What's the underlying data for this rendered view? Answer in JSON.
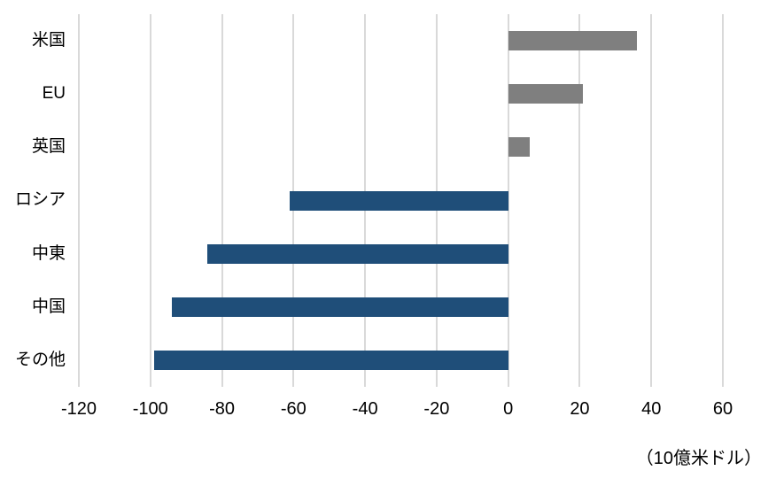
{
  "chart_data": {
    "type": "bar",
    "orientation": "horizontal",
    "title": "",
    "categories": [
      "米国",
      "EU",
      "英国",
      "ロシア",
      "中東",
      "中国",
      "その他"
    ],
    "values": [
      36,
      21,
      6,
      -61,
      -84,
      -94,
      -99
    ],
    "xlabel": "（10億米ドル）",
    "ylabel": "",
    "xlim": [
      -120,
      60
    ],
    "xticks": [
      -120,
      -100,
      -80,
      -60,
      -40,
      -20,
      0,
      20,
      40,
      60
    ],
    "grid": true,
    "legend": false,
    "colors": {
      "positive_bar": "#7F7F7F",
      "negative_bar": "#1F4E79",
      "gridline": "#D9D9D9",
      "axis_text": "#000000",
      "background": "#FFFFFF"
    }
  }
}
